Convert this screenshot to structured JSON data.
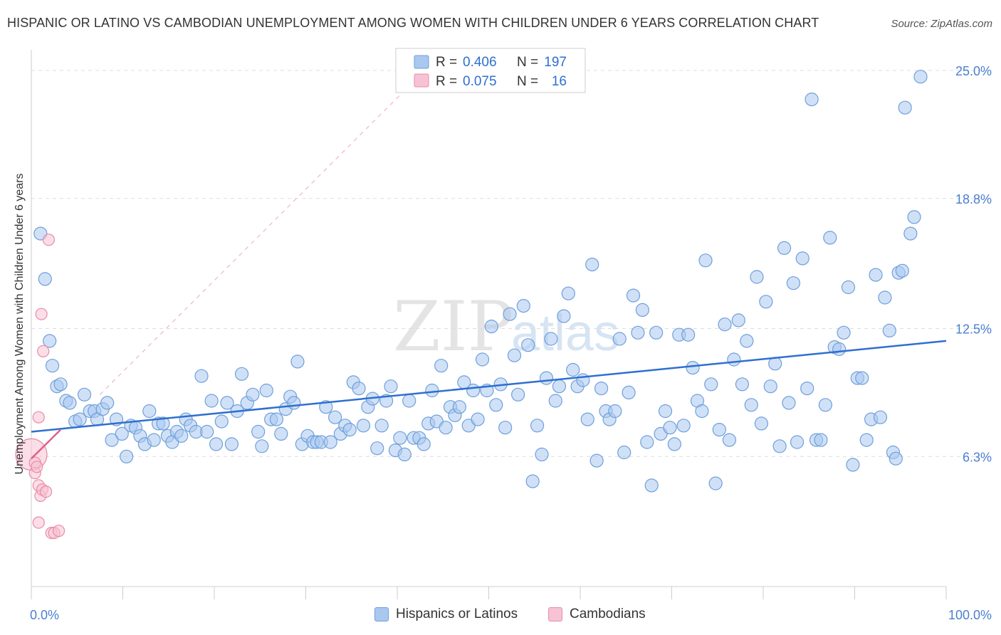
{
  "title": "HISPANIC OR LATINO VS CAMBODIAN UNEMPLOYMENT AMONG WOMEN WITH CHILDREN UNDER 6 YEARS CORRELATION CHART",
  "source": "Source: ZipAtlas.com",
  "watermark": {
    "zip": "ZIP",
    "atlas": "atlas"
  },
  "colors": {
    "blue_fill": "#a9c8f0",
    "blue_stroke": "#6f9fda",
    "blue_line": "#2f6fd0",
    "pink_fill": "#f7c3d4",
    "pink_stroke": "#e88ba8",
    "pink_line": "#e0608a",
    "tick_label": "#4a7fd0",
    "grid": "#dddddd"
  },
  "legend": {
    "rows": [
      {
        "r_label": "R =",
        "r_value": "0.406",
        "n_label": "N =",
        "n_value": "197",
        "swatch_fill": "#a9c8f0",
        "swatch_stroke": "#6f9fda"
      },
      {
        "r_label": "R =",
        "r_value": "0.075",
        "n_label": "N =",
        "n_value": "16",
        "swatch_fill": "#f7c3d4",
        "swatch_stroke": "#e88ba8"
      }
    ]
  },
  "bottom_legend": [
    {
      "label": "Hispanics or Latinos",
      "fill": "#a9c8f0",
      "stroke": "#6f9fda"
    },
    {
      "label": "Cambodians",
      "fill": "#f7c3d4",
      "stroke": "#e88ba8"
    }
  ],
  "chart_data": {
    "type": "scatter",
    "title": "HISPANIC OR LATINO VS CAMBODIAN UNEMPLOYMENT AMONG WOMEN WITH CHILDREN UNDER 6 YEARS CORRELATION CHART",
    "xlabel": "",
    "ylabel": "Unemployment Among Women with Children Under 6 years",
    "xlim": [
      0,
      100
    ],
    "ylim": [
      0,
      26
    ],
    "x_tick_labels": [
      {
        "value": 0,
        "label": "0.0%"
      },
      {
        "value": 100,
        "label": "100.0%"
      }
    ],
    "y_ticks": [
      {
        "value": 6.3,
        "label": "6.3%"
      },
      {
        "value": 12.5,
        "label": "12.5%"
      },
      {
        "value": 18.8,
        "label": "18.8%"
      },
      {
        "value": 25.0,
        "label": "25.0%"
      }
    ],
    "legend_position": "top-center",
    "series": [
      {
        "name": "Hispanics or Latinos",
        "R": 0.406,
        "N": 197,
        "trend": {
          "x": [
            0,
            100
          ],
          "y": [
            7.5,
            11.9
          ]
        },
        "points": [
          [
            1,
            17.1
          ],
          [
            1.5,
            14.9
          ],
          [
            2,
            11.9
          ],
          [
            2.3,
            10.7
          ],
          [
            2.8,
            9.7
          ],
          [
            3.2,
            9.8
          ],
          [
            3.8,
            9
          ],
          [
            4.2,
            8.9
          ],
          [
            4.8,
            8
          ],
          [
            5.3,
            8.1
          ],
          [
            5.8,
            9.3
          ],
          [
            6.4,
            8.5
          ],
          [
            6.9,
            8.5
          ],
          [
            7.2,
            8.1
          ],
          [
            7.8,
            8.6
          ],
          [
            8.3,
            8.9
          ],
          [
            8.8,
            7.1
          ],
          [
            9.3,
            8.1
          ],
          [
            9.9,
            7.4
          ],
          [
            10.4,
            6.3
          ],
          [
            10.9,
            7.8
          ],
          [
            11.4,
            7.7
          ],
          [
            11.9,
            7.3
          ],
          [
            12.4,
            6.9
          ],
          [
            12.9,
            8.5
          ],
          [
            13.4,
            7.1
          ],
          [
            13.9,
            7.9
          ],
          [
            14.4,
            7.9
          ],
          [
            14.9,
            7.3
          ],
          [
            15.4,
            7
          ],
          [
            15.9,
            7.5
          ],
          [
            16.4,
            7.3
          ],
          [
            16.9,
            8.1
          ],
          [
            17.4,
            7.8
          ],
          [
            18,
            7.5
          ],
          [
            18.6,
            10.2
          ],
          [
            19.2,
            7.5
          ],
          [
            19.7,
            9
          ],
          [
            20.2,
            6.9
          ],
          [
            20.8,
            8
          ],
          [
            21.4,
            8.9
          ],
          [
            21.9,
            6.9
          ],
          [
            22.5,
            8.5
          ],
          [
            23,
            10.3
          ],
          [
            23.6,
            8.9
          ],
          [
            24.2,
            9.3
          ],
          [
            24.8,
            7.5
          ],
          [
            25.2,
            6.8
          ],
          [
            25.7,
            9.5
          ],
          [
            26.2,
            8.1
          ],
          [
            26.8,
            8.1
          ],
          [
            27.3,
            7.4
          ],
          [
            27.8,
            8.6
          ],
          [
            28.3,
            9.2
          ],
          [
            28.7,
            8.9
          ],
          [
            29.1,
            10.9
          ],
          [
            29.6,
            6.9
          ],
          [
            30.2,
            7.3
          ],
          [
            30.8,
            7
          ],
          [
            31.2,
            7
          ],
          [
            31.7,
            7
          ],
          [
            32.2,
            8.7
          ],
          [
            32.7,
            7
          ],
          [
            33.2,
            8.2
          ],
          [
            33.8,
            7.4
          ],
          [
            34.3,
            7.8
          ],
          [
            34.8,
            7.6
          ],
          [
            35.2,
            9.9
          ],
          [
            35.8,
            9.6
          ],
          [
            36.3,
            7.8
          ],
          [
            36.8,
            8.7
          ],
          [
            37.3,
            9.1
          ],
          [
            37.8,
            6.7
          ],
          [
            38.3,
            7.8
          ],
          [
            38.8,
            9
          ],
          [
            39.3,
            9.7
          ],
          [
            39.8,
            6.6
          ],
          [
            40.3,
            7.2
          ],
          [
            40.8,
            6.4
          ],
          [
            41.3,
            9
          ],
          [
            41.8,
            7.2
          ],
          [
            42.4,
            7.2
          ],
          [
            42.9,
            6.9
          ],
          [
            43.4,
            7.9
          ],
          [
            43.8,
            9.5
          ],
          [
            44.3,
            8
          ],
          [
            44.8,
            10.7
          ],
          [
            45.3,
            7.7
          ],
          [
            45.8,
            8.7
          ],
          [
            46.3,
            8.3
          ],
          [
            46.8,
            8.7
          ],
          [
            47.3,
            9.9
          ],
          [
            47.8,
            7.8
          ],
          [
            48.3,
            9.5
          ],
          [
            48.8,
            8.1
          ],
          [
            49.3,
            11.0
          ],
          [
            49.8,
            9.5
          ],
          [
            50.3,
            12.6
          ],
          [
            50.8,
            8.8
          ],
          [
            51.3,
            9.8
          ],
          [
            51.8,
            7.7
          ],
          [
            52.3,
            13.2
          ],
          [
            52.8,
            11.2
          ],
          [
            53.2,
            9.3
          ],
          [
            53.8,
            13.6
          ],
          [
            54.3,
            11.7
          ],
          [
            54.8,
            5.1
          ],
          [
            55.3,
            7.8
          ],
          [
            55.8,
            6.4
          ],
          [
            56.3,
            10.1
          ],
          [
            56.8,
            12
          ],
          [
            57.3,
            9.0
          ],
          [
            57.7,
            9.7
          ],
          [
            58.2,
            13.1
          ],
          [
            58.7,
            14.2
          ],
          [
            59.2,
            10.5
          ],
          [
            59.7,
            9.7
          ],
          [
            60.3,
            10
          ],
          [
            60.8,
            8.1
          ],
          [
            61.3,
            15.6
          ],
          [
            61.8,
            6.1
          ],
          [
            62.3,
            9.6
          ],
          [
            62.8,
            8.5
          ],
          [
            63.2,
            8.1
          ],
          [
            63.8,
            8.5
          ],
          [
            64.3,
            12.0
          ],
          [
            64.8,
            6.5
          ],
          [
            65.3,
            9.4
          ],
          [
            65.8,
            14.1
          ],
          [
            66.3,
            12.3
          ],
          [
            66.8,
            13.4
          ],
          [
            67.3,
            7.0
          ],
          [
            67.8,
            4.9
          ],
          [
            68.3,
            12.3
          ],
          [
            68.8,
            7.4
          ],
          [
            69.3,
            8.5
          ],
          [
            69.8,
            7.7
          ],
          [
            70.3,
            6.9
          ],
          [
            70.8,
            12.2
          ],
          [
            71.3,
            7.8
          ],
          [
            71.8,
            12.2
          ],
          [
            72.3,
            10.6
          ],
          [
            72.8,
            9
          ],
          [
            73.3,
            8.5
          ],
          [
            73.7,
            15.8
          ],
          [
            74.3,
            9.8
          ],
          [
            74.8,
            5.0
          ],
          [
            75.2,
            7.6
          ],
          [
            75.8,
            12.7
          ],
          [
            76.3,
            7.1
          ],
          [
            76.8,
            11.0
          ],
          [
            77.3,
            12.9
          ],
          [
            77.7,
            9.8
          ],
          [
            78.2,
            11.9
          ],
          [
            78.7,
            8.8
          ],
          [
            79.3,
            15.0
          ],
          [
            79.8,
            7.9
          ],
          [
            80.3,
            13.8
          ],
          [
            80.8,
            9.7
          ],
          [
            81.3,
            10.8
          ],
          [
            81.8,
            6.8
          ],
          [
            82.3,
            16.4
          ],
          [
            82.8,
            8.9
          ],
          [
            83.3,
            14.7
          ],
          [
            83.7,
            7.0
          ],
          [
            84.3,
            15.9
          ],
          [
            84.8,
            9.6
          ],
          [
            85.3,
            23.6
          ],
          [
            85.8,
            7.1
          ],
          [
            86.3,
            7.1
          ],
          [
            86.8,
            8.8
          ],
          [
            87.3,
            16.9
          ],
          [
            87.8,
            11.6
          ],
          [
            88.3,
            11.5
          ],
          [
            88.8,
            12.3
          ],
          [
            89.3,
            14.5
          ],
          [
            89.8,
            5.9
          ],
          [
            90.3,
            10.1
          ],
          [
            90.8,
            10.1
          ],
          [
            91.3,
            7.1
          ],
          [
            91.8,
            8.1
          ],
          [
            92.3,
            15.1
          ],
          [
            92.8,
            8.2
          ],
          [
            93.3,
            14.0
          ],
          [
            93.8,
            12.4
          ],
          [
            94.2,
            6.5
          ],
          [
            94.5,
            6.2
          ],
          [
            94.8,
            15.2
          ],
          [
            95.2,
            15.3
          ],
          [
            95.5,
            23.2
          ],
          [
            96.1,
            17.1
          ],
          [
            96.5,
            17.9
          ],
          [
            97.2,
            24.7
          ]
        ]
      },
      {
        "name": "Cambodians",
        "R": 0.075,
        "N": 16,
        "trend": {
          "x": [
            0,
            3.2
          ],
          "y": [
            6.2,
            7.6
          ]
        },
        "points": [
          [
            0,
            6.4
          ],
          [
            0.4,
            6.0
          ],
          [
            0.4,
            5.5
          ],
          [
            0.6,
            5.8
          ],
          [
            0.8,
            8.2
          ],
          [
            0.8,
            4.9
          ],
          [
            0.8,
            3.1
          ],
          [
            1.0,
            4.4
          ],
          [
            1.1,
            13.2
          ],
          [
            1.2,
            4.7
          ],
          [
            1.3,
            11.4
          ],
          [
            1.6,
            4.6
          ],
          [
            1.9,
            16.8
          ],
          [
            2.2,
            2.6
          ],
          [
            2.5,
            2.6
          ],
          [
            3.0,
            2.7
          ]
        ]
      }
    ]
  }
}
